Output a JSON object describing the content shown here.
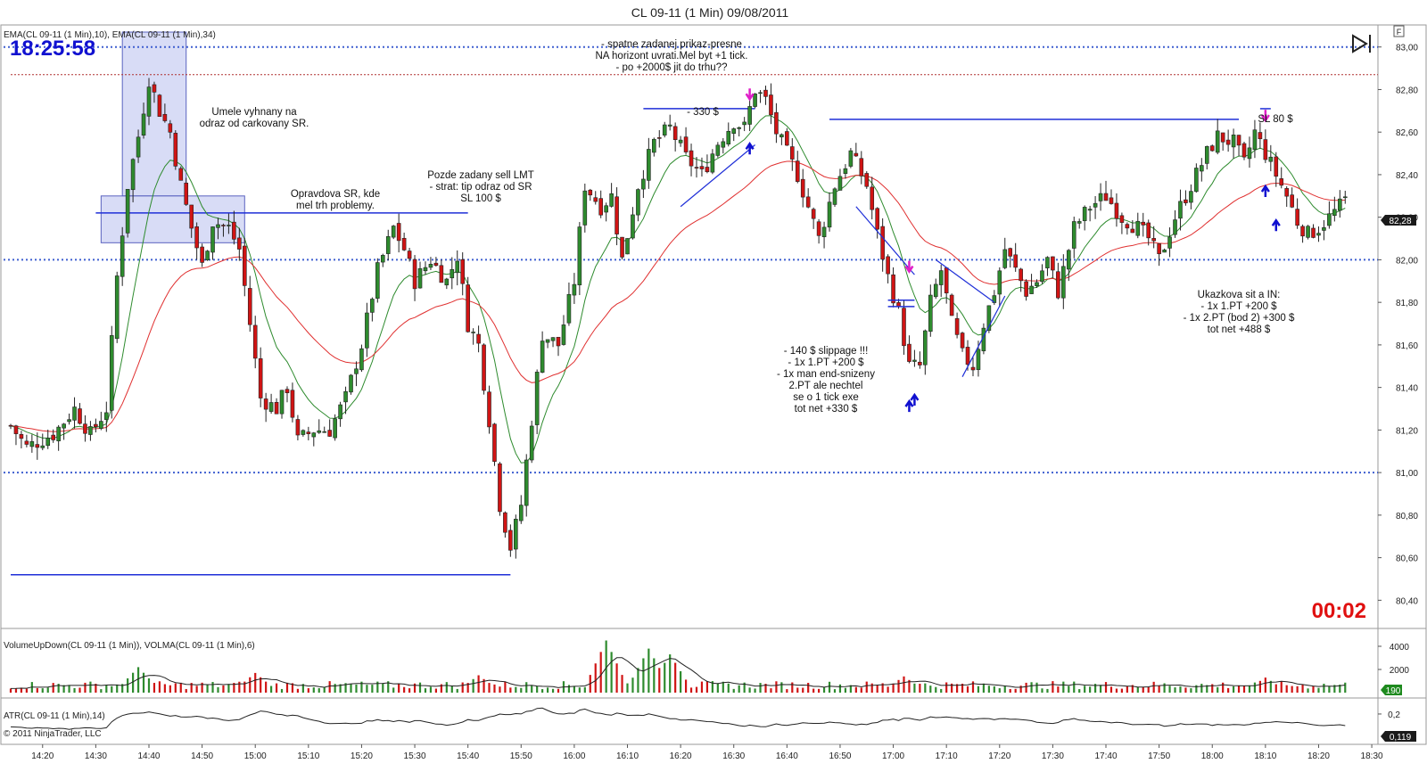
{
  "window": {
    "title": "CL 09-11 (1 Min)  09/08/2011"
  },
  "clock": {
    "time": "18:25:58",
    "countdown": "00:02"
  },
  "indicator_labels": {
    "price_panel": "EMA(CL 09-11 (1 Min),10), EMA(CL 09-11 (1 Min),34)",
    "volume_panel": "VolumeUpDown(CL 09-11 (1 Min)), VOLMA(CL 09-11 (1 Min),6)",
    "atr_panel": "ATR(CL 09-11 (1 Min),14)",
    "copyright": "© 2011 NinjaTrader, LLC"
  },
  "markers": {
    "last_price": "82,28",
    "last_volume": "190",
    "last_atr": "0,119"
  },
  "annotations": [
    {
      "id": "umele",
      "lines": [
        "Umele vyhnany na",
        "odraz od carkovany SR."
      ]
    },
    {
      "id": "opravdova",
      "lines": [
        "Opravdova SR, kde",
        "mel trh problemy."
      ]
    },
    {
      "id": "pozde",
      "lines": [
        "Pozde zadany sell LMT",
        "- strat: tip odraz od SR",
        "SL 100 $"
      ]
    },
    {
      "id": "spatne",
      "lines": [
        "- spatne zadanej prikaz-presne",
        "NA horizont uvrati.Mel byt +1 tick.",
        "- po +2000$ jit do trhu??"
      ]
    },
    {
      "id": "minus330",
      "lines": [
        "- 330 $"
      ]
    },
    {
      "id": "slippage",
      "lines": [
        "- 140 $ slippage !!!",
        "- 1x 1.PT +200 $",
        "- 1x man end-snizeny",
        "2.PT ale nechtel",
        "se o 1 tick exe",
        "tot net +330 $"
      ]
    },
    {
      "id": "sl80",
      "lines": [
        "SL 80 $"
      ]
    },
    {
      "id": "ukazkova",
      "lines": [
        "Ukazkova sit a IN:",
        "- 1x 1.PT +200 $",
        "- 1x 2.PT (bod 2) +300 $",
        "tot net +488 $"
      ]
    }
  ],
  "colors": {
    "up_candle": "#2e8b2e",
    "down_candle": "#d01414",
    "ema_fast": "#2e8b2e",
    "ema_slow": "#e03030",
    "sr_dotted": "#3f5fd0",
    "trend_line": "#1f2fd8",
    "box_fill": "#c8cdf2",
    "clock": "#1010d0",
    "countdown": "#e01010",
    "buy_arrow": "#1010d0",
    "sell_arrow": "#e020c8"
  },
  "chart_data": [
    {
      "type": "candlestick",
      "title": "CL 09-11 (1 Min)  09/08/2011",
      "x_ticks": [
        "14:20",
        "14:30",
        "14:40",
        "14:50",
        "15:00",
        "15:10",
        "15:20",
        "15:30",
        "15:40",
        "15:50",
        "16:00",
        "16:10",
        "16:20",
        "16:30",
        "16:40",
        "16:50",
        "17:00",
        "17:10",
        "17:20",
        "17:30",
        "17:40",
        "17:50",
        "18:00",
        "18:10",
        "18:20",
        "18:30"
      ],
      "y_ticks": [
        "80,40",
        "80,60",
        "80,80",
        "81,00",
        "81,20",
        "81,40",
        "81,60",
        "81,80",
        "82,00",
        "82,20",
        "82,40",
        "82,60",
        "82,80",
        "83,00"
      ],
      "ylim": [
        80.28,
        83.07
      ],
      "x_range": [
        "14:14",
        "18:32"
      ],
      "close_anchors": [
        [
          "14:14",
          81.22
        ],
        [
          "14:17",
          81.12
        ],
        [
          "14:22",
          81.18
        ],
        [
          "14:26",
          81.3
        ],
        [
          "14:29",
          81.18
        ],
        [
          "14:32",
          81.3
        ],
        [
          "14:34",
          81.92
        ],
        [
          "14:36",
          82.35
        ],
        [
          "14:38",
          82.58
        ],
        [
          "14:40",
          82.85
        ],
        [
          "14:42",
          82.7
        ],
        [
          "14:44",
          82.6
        ],
        [
          "14:46",
          82.35
        ],
        [
          "14:48",
          82.15
        ],
        [
          "14:50",
          81.97
        ],
        [
          "14:52",
          82.18
        ],
        [
          "14:55",
          82.15
        ],
        [
          "14:57",
          82.05
        ],
        [
          "14:59",
          81.7
        ],
        [
          "15:01",
          81.35
        ],
        [
          "15:04",
          81.3
        ],
        [
          "15:06",
          81.4
        ],
        [
          "15:08",
          81.15
        ],
        [
          "15:11",
          81.2
        ],
        [
          "15:14",
          81.2
        ],
        [
          "15:17",
          81.35
        ],
        [
          "15:20",
          81.6
        ],
        [
          "15:23",
          81.95
        ],
        [
          "15:26",
          82.15
        ],
        [
          "15:28",
          82.05
        ],
        [
          "15:30",
          81.9
        ],
        [
          "15:33",
          82.0
        ],
        [
          "15:36",
          81.9
        ],
        [
          "15:38",
          82.02
        ],
        [
          "15:40",
          81.7
        ],
        [
          "15:42",
          81.6
        ],
        [
          "15:44",
          81.25
        ],
        [
          "15:46",
          80.85
        ],
        [
          "15:48",
          80.65
        ],
        [
          "15:50",
          80.85
        ],
        [
          "15:52",
          81.25
        ],
        [
          "15:54",
          81.65
        ],
        [
          "15:57",
          81.6
        ],
        [
          "16:00",
          81.9
        ],
        [
          "16:02",
          82.35
        ],
        [
          "16:05",
          82.25
        ],
        [
          "16:07",
          82.3
        ],
        [
          "16:09",
          82.0
        ],
        [
          "16:12",
          82.35
        ],
        [
          "16:15",
          82.55
        ],
        [
          "16:18",
          82.62
        ],
        [
          "16:21",
          82.48
        ],
        [
          "16:24",
          82.4
        ],
        [
          "16:27",
          82.55
        ],
        [
          "16:30",
          82.65
        ],
        [
          "16:32",
          82.62
        ],
        [
          "16:34",
          82.8
        ],
        [
          "16:36",
          82.75
        ],
        [
          "16:38",
          82.6
        ],
        [
          "16:40",
          82.5
        ],
        [
          "16:42",
          82.4
        ],
        [
          "16:44",
          82.25
        ],
        [
          "16:46",
          82.1
        ],
        [
          "16:49",
          82.35
        ],
        [
          "16:52",
          82.5
        ],
        [
          "16:55",
          82.35
        ],
        [
          "16:57",
          82.12
        ],
        [
          "16:59",
          81.92
        ],
        [
          "17:01",
          81.75
        ],
        [
          "17:03",
          81.5
        ],
        [
          "17:05",
          81.5
        ],
        [
          "17:07",
          81.8
        ],
        [
          "17:09",
          81.95
        ],
        [
          "17:11",
          81.7
        ],
        [
          "17:13",
          81.55
        ],
        [
          "17:15",
          81.5
        ],
        [
          "17:17",
          81.7
        ],
        [
          "17:19",
          81.85
        ],
        [
          "17:21",
          82.05
        ],
        [
          "17:23",
          81.95
        ],
        [
          "17:25",
          81.85
        ],
        [
          "17:27",
          81.9
        ],
        [
          "17:29",
          82.0
        ],
        [
          "17:31",
          81.85
        ],
        [
          "17:34",
          82.15
        ],
        [
          "17:37",
          82.25
        ],
        [
          "17:40",
          82.3
        ],
        [
          "17:43",
          82.2
        ],
        [
          "17:46",
          82.15
        ],
        [
          "17:48",
          82.1
        ],
        [
          "17:50",
          82.0
        ],
        [
          "17:53",
          82.2
        ],
        [
          "17:56",
          82.35
        ],
        [
          "17:59",
          82.5
        ],
        [
          "18:01",
          82.58
        ],
        [
          "18:04",
          82.55
        ],
        [
          "18:06",
          82.45
        ],
        [
          "18:08",
          82.6
        ],
        [
          "18:10",
          82.5
        ],
        [
          "18:12",
          82.4
        ],
        [
          "18:14",
          82.3
        ],
        [
          "18:16",
          82.18
        ],
        [
          "18:18",
          82.12
        ],
        [
          "18:20",
          82.15
        ],
        [
          "18:22",
          82.2
        ],
        [
          "18:24",
          82.25
        ],
        [
          "18:25",
          82.28
        ]
      ],
      "horizontal_levels": [
        {
          "value": 83.0,
          "style": "dotted"
        },
        {
          "value": 82.0,
          "style": "dotted"
        },
        {
          "value": 81.0,
          "style": "dotted"
        },
        {
          "value": 82.87,
          "style": "dashed-red",
          "from": "14:14",
          "to": "18:32"
        },
        {
          "value": 82.22,
          "style": "solid",
          "from": "14:30",
          "to": "15:40"
        },
        {
          "value": 82.71,
          "style": "solid",
          "from": "16:13",
          "to": "16:34"
        },
        {
          "value": 82.66,
          "style": "solid",
          "from": "16:48",
          "to": "18:05"
        },
        {
          "value": 82.71,
          "style": "solid",
          "from": "18:09",
          "to": "18:11"
        },
        {
          "value": 80.52,
          "style": "solid",
          "from": "14:14",
          "to": "15:48"
        }
      ],
      "highlight_boxes": [
        {
          "from": "14:35",
          "to": "14:47",
          "low": 82.3,
          "high": 83.07
        },
        {
          "from": "14:31",
          "to": "14:58",
          "low": 82.08,
          "high": 82.3
        }
      ]
    },
    {
      "type": "bar",
      "title": "VolumeUpDown(CL 09-11 (1 Min)), VOLMA(CL 09-11 (1 Min),6)",
      "y_ticks": [
        "2000",
        "4000"
      ],
      "ylim": [
        0,
        5000
      ],
      "spikes": [
        [
          "14:38",
          2200
        ],
        [
          "15:00",
          1700
        ],
        [
          "15:42",
          1500
        ],
        [
          "16:06",
          4500
        ],
        [
          "16:14",
          3800
        ],
        [
          "16:18",
          3300
        ],
        [
          "17:02",
          1400
        ],
        [
          "18:10",
          1300
        ]
      ]
    },
    {
      "type": "line",
      "title": "ATR(CL 09-11 (1 Min),14)",
      "y_ticks": [
        "0,2"
      ],
      "ylim": [
        0.05,
        0.27
      ]
    }
  ]
}
